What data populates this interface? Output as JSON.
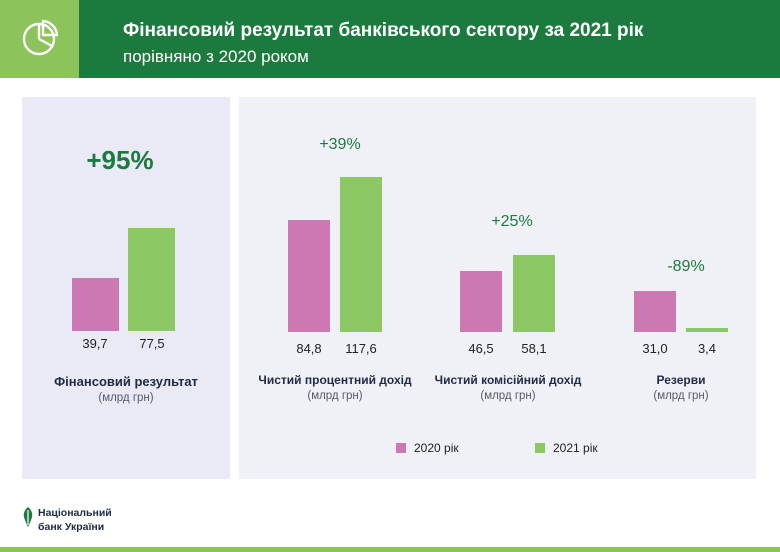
{
  "header": {
    "title": "Фінансовий результат банківського сектору за 2021 рік",
    "subtitle": "порівняно з 2020 роком",
    "icon": "pie-chart-icon"
  },
  "colors": {
    "header_bg": "#1c7a3e",
    "icon_box": "#8cc35a",
    "series_2020": "#cc79b3",
    "series_2021": "#8cc863",
    "accent_text": "#1c7a3e"
  },
  "chart_data": {
    "type": "bar",
    "categories": [
      "Фінансовий результат",
      "Чистий процентний дохід",
      "Чистий комісійний дохід",
      "Резерви"
    ],
    "units": [
      "(млрд грн)",
      "(млрд грн)",
      "(млрд грн)",
      "(млрд грн)"
    ],
    "series": [
      {
        "name": "2020 рік",
        "values": [
          39.7,
          84.8,
          46.5,
          31.0
        ]
      },
      {
        "name": "2021 рік",
        "values": [
          77.5,
          117.6,
          58.1,
          3.4
        ]
      }
    ],
    "value_labels": [
      [
        "39,7",
        "77,5"
      ],
      [
        "84,8",
        "117,6"
      ],
      [
        "46,5",
        "58,1"
      ],
      [
        "31,0",
        "3,4"
      ]
    ],
    "changes": [
      "+95%",
      "+39%",
      "+25%",
      "-89%"
    ],
    "legend_position": "bottom",
    "grid": false
  },
  "footer": {
    "logo_line1": "Національний",
    "logo_line2": "банк України",
    "logo_icon": "nbu-logo-icon"
  }
}
